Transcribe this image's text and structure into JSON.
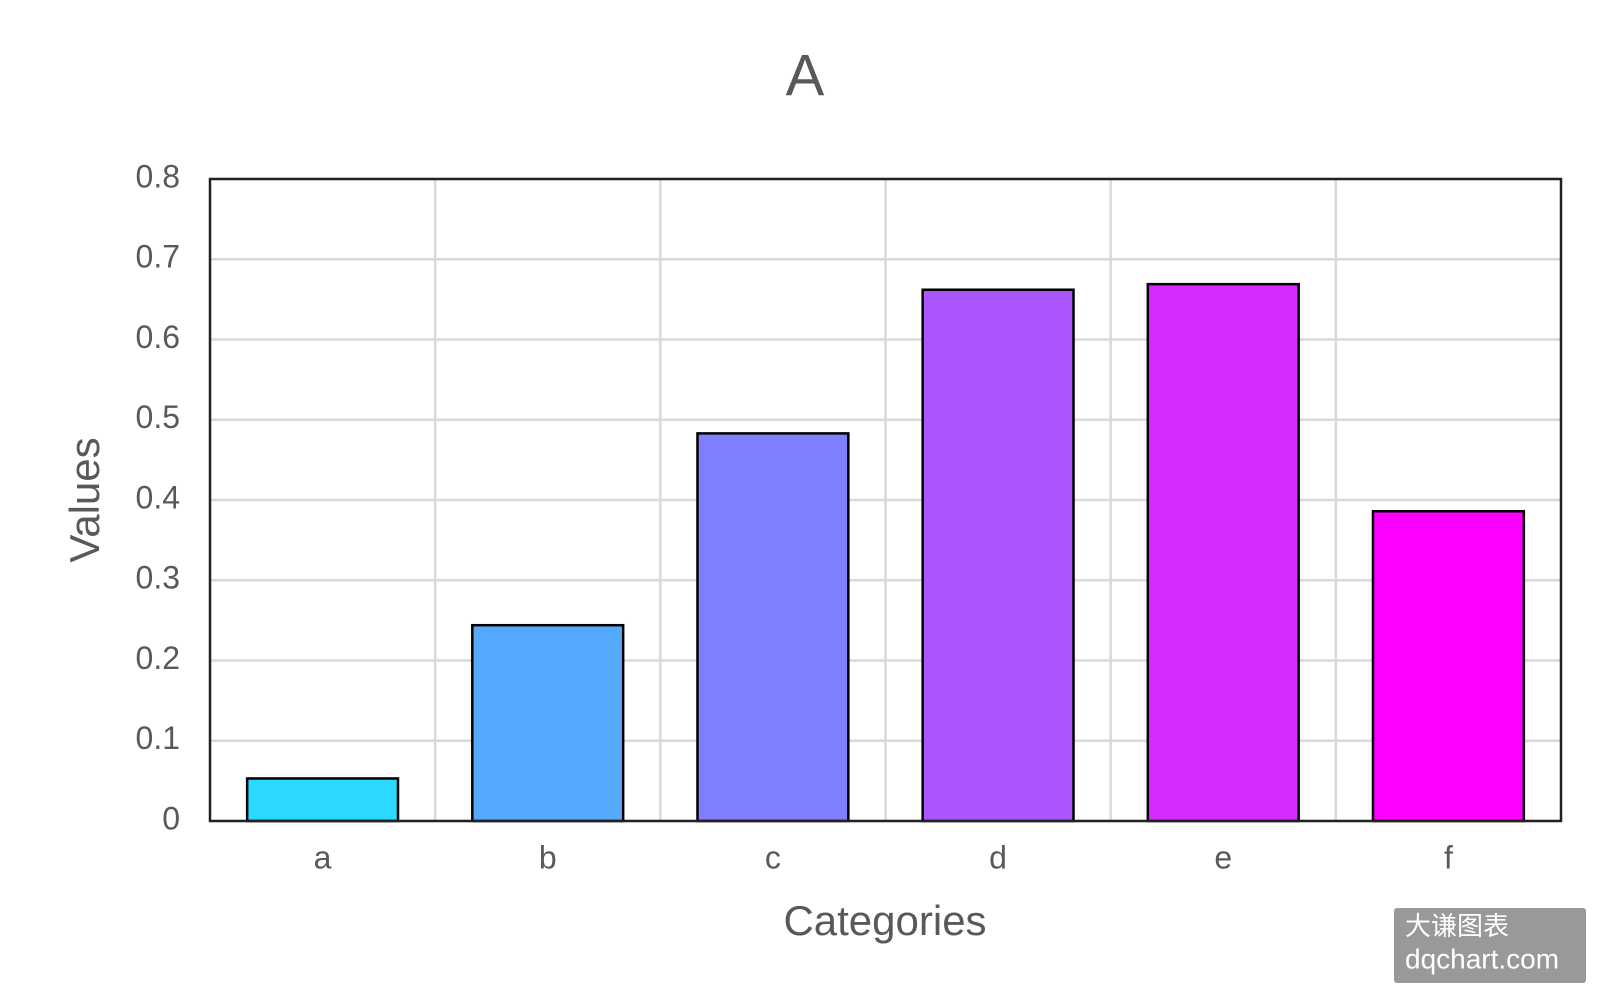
{
  "chart_data": {
    "type": "bar",
    "title": "A",
    "x_label": "Categories",
    "y_label": "Values",
    "categories": [
      "a",
      "b",
      "c",
      "d",
      "e",
      "f"
    ],
    "values": [
      0.053,
      0.244,
      0.483,
      0.662,
      0.669,
      0.386
    ],
    "colors": [
      "#2bd8ff",
      "#55aaff",
      "#7f7fff",
      "#aa55ff",
      "#d52bff",
      "#ff00ff"
    ],
    "ylim": [
      0,
      0.8
    ],
    "yticks": [
      0,
      0.1,
      0.2,
      0.3,
      0.4,
      0.5,
      0.6,
      0.7,
      0.8
    ],
    "grid": true
  },
  "watermark": {
    "line1": "大谦图表",
    "line2": "dqchart.com"
  }
}
